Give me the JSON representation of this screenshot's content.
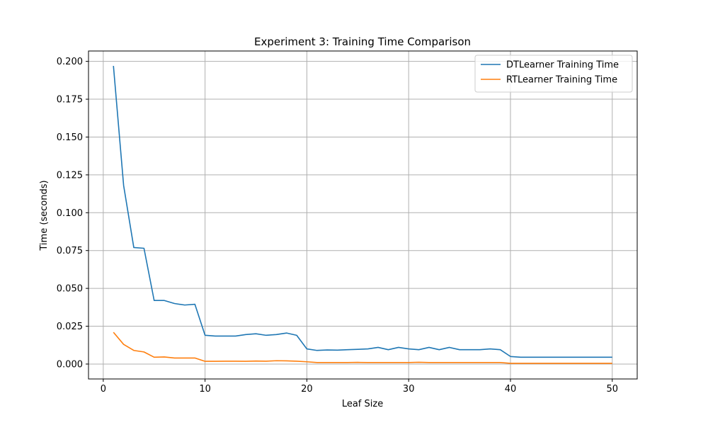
{
  "chart_data": {
    "type": "line",
    "title": "Experiment 3: Training Time Comparison",
    "xlabel": "Leaf Size",
    "ylabel": "Time (seconds)",
    "xlim": [
      -1.45,
      52.45
    ],
    "ylim": [
      -0.00985,
      0.20685
    ],
    "xticks": [
      0,
      10,
      20,
      30,
      40,
      50
    ],
    "xtick_labels": [
      "0",
      "10",
      "20",
      "30",
      "40",
      "50"
    ],
    "yticks": [
      0.0,
      0.025,
      0.05,
      0.075,
      0.1,
      0.125,
      0.15,
      0.175,
      0.2
    ],
    "ytick_labels": [
      "0.000",
      "0.025",
      "0.050",
      "0.075",
      "0.100",
      "0.125",
      "0.150",
      "0.175",
      "0.200"
    ],
    "grid": true,
    "legend_position": "top-right",
    "x": [
      1,
      2,
      3,
      4,
      5,
      6,
      7,
      8,
      9,
      10,
      11,
      12,
      13,
      14,
      15,
      16,
      17,
      18,
      19,
      20,
      21,
      22,
      23,
      24,
      25,
      26,
      27,
      28,
      29,
      30,
      31,
      32,
      33,
      34,
      35,
      36,
      37,
      38,
      39,
      40,
      41,
      42,
      43,
      44,
      45,
      46,
      47,
      48,
      49,
      50
    ],
    "series": [
      {
        "name": "DTLearner Training Time",
        "color": "#1f77b4",
        "values": [
          0.197,
          0.118,
          0.077,
          0.0765,
          0.042,
          0.042,
          0.04,
          0.039,
          0.0395,
          0.019,
          0.0185,
          0.0185,
          0.0185,
          0.0195,
          0.02,
          0.019,
          0.0195,
          0.0205,
          0.019,
          0.01,
          0.009,
          0.0093,
          0.0092,
          0.0095,
          0.0097,
          0.01,
          0.011,
          0.0095,
          0.011,
          0.01,
          0.0095,
          0.011,
          0.0095,
          0.011,
          0.0095,
          0.0095,
          0.0095,
          0.01,
          0.0095,
          0.005,
          0.0045,
          0.0045,
          0.0045,
          0.0045,
          0.0045,
          0.0045,
          0.0045,
          0.0045,
          0.0045,
          0.0045
        ]
      },
      {
        "name": "RTLearner Training Time",
        "color": "#ff7f0e",
        "values": [
          0.021,
          0.013,
          0.009,
          0.008,
          0.0045,
          0.0047,
          0.004,
          0.004,
          0.004,
          0.0018,
          0.0018,
          0.0019,
          0.0019,
          0.0018,
          0.002,
          0.0019,
          0.0022,
          0.0021,
          0.0019,
          0.0015,
          0.001,
          0.001,
          0.001,
          0.001,
          0.0011,
          0.001,
          0.001,
          0.001,
          0.001,
          0.001,
          0.0012,
          0.001,
          0.001,
          0.001,
          0.001,
          0.001,
          0.001,
          0.001,
          0.001,
          0.0005,
          0.0005,
          0.0005,
          0.0005,
          0.0005,
          0.0005,
          0.0005,
          0.0005,
          0.0005,
          0.0005,
          0.0005
        ]
      }
    ]
  }
}
